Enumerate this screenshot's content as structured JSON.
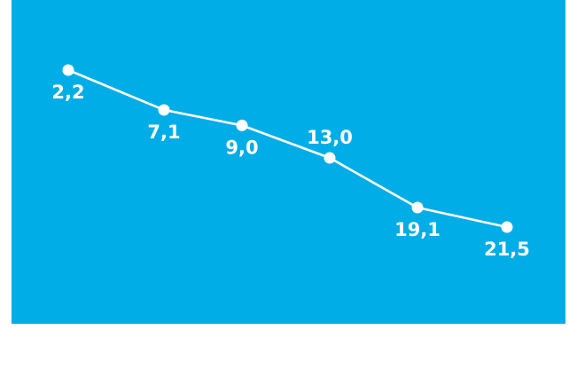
{
  "chart_data": {
    "type": "line",
    "x": [
      1,
      2,
      3,
      4,
      5,
      6
    ],
    "values": [
      2.2,
      7.1,
      9.0,
      13.0,
      19.1,
      21.5
    ],
    "data_labels": [
      "2,2",
      "7,1",
      "9,0",
      "13,0",
      "19,1",
      "21,5"
    ],
    "label_positions": [
      "below",
      "below",
      "below",
      "above",
      "below",
      "below"
    ],
    "y_axis_inverted": true,
    "grid": false,
    "colors": {
      "panel": "#00ADE6",
      "line": "#ffffff",
      "marker": "#ffffff",
      "label": "#ffffff",
      "page": "#ffffff"
    }
  }
}
